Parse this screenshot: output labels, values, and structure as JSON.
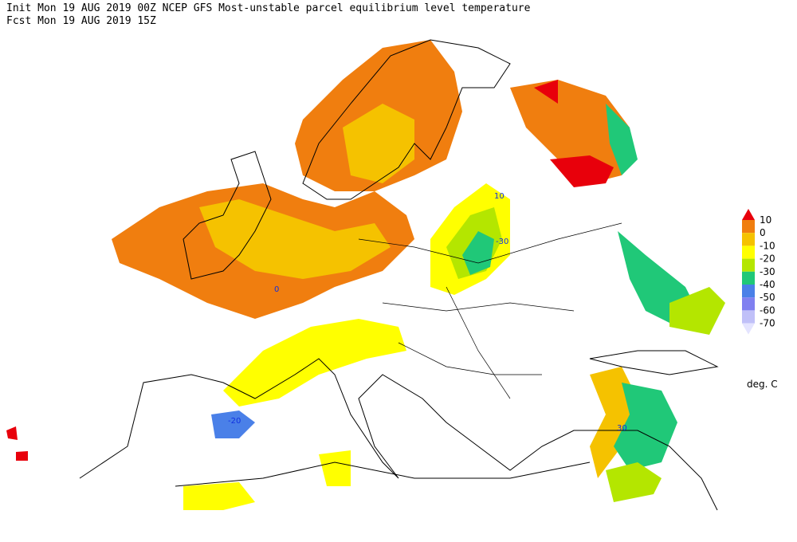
{
  "header": {
    "line1": "Init  Mon 19 AUG 2019 00Z  NCEP GFS Most-unstable parcel equilibrium level temperature",
    "line2": "Fcst Mon 19 AUG 2019 15Z"
  },
  "legend": {
    "levels": [
      10,
      0,
      -10,
      -20,
      -30,
      -40,
      -50,
      -60,
      -70
    ],
    "colors": [
      "#e8000b",
      "#f07e0f",
      "#f5c200",
      "#ffff00",
      "#b4e600",
      "#20c878",
      "#4a80e8",
      "#8080f0",
      "#c0c0f8",
      "#e4e4ff"
    ],
    "units": "deg. C"
  },
  "contour_labels": [
    "10",
    "-30",
    "-20",
    "30",
    "0"
  ]
}
